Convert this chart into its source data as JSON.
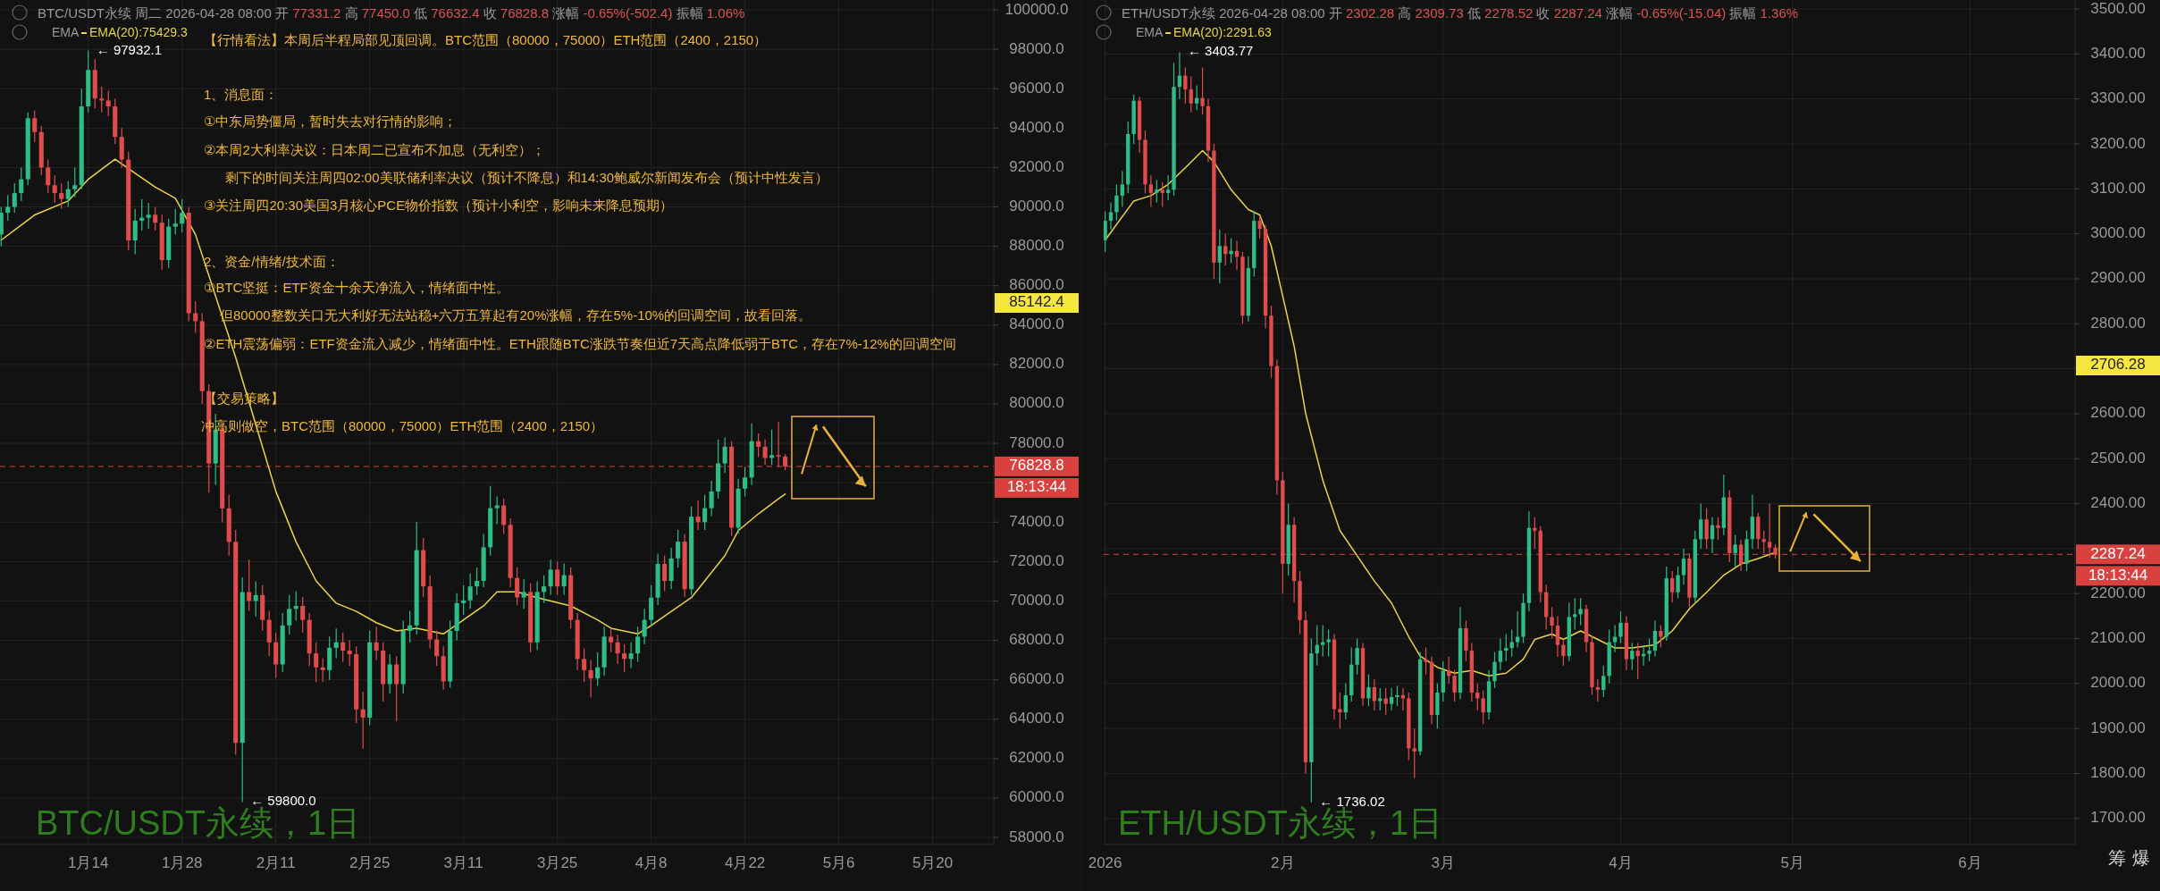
{
  "chart_data": [
    {
      "type": "candlestick",
      "title": "BTC/USDT永续 周二 2026-04-28 08:00 开 77331.2 高 77450.0 低 76632.4 收 76828.8 涨幅 -0.65%(-502.4) 振幅 1.06%",
      "x": [
        "2026-01-01",
        "2026-01-02",
        "2026-01-03",
        "2026-01-04",
        "2026-01-05",
        "2026-01-06",
        "2026-01-07",
        "2026-01-08",
        "2026-01-09",
        "2026-01-10",
        "2026-01-11",
        "2026-01-12",
        "2026-01-13",
        "2026-01-14",
        "2026-01-15",
        "2026-01-16",
        "2026-01-17",
        "2026-01-18",
        "2026-01-19",
        "2026-01-20",
        "2026-01-21",
        "2026-01-22",
        "2026-01-23",
        "2026-01-24",
        "2026-01-25",
        "2026-01-26",
        "2026-01-27",
        "2026-01-28",
        "2026-01-29",
        "2026-01-30",
        "2026-01-31",
        "2026-02-01",
        "2026-02-02",
        "2026-02-03",
        "2026-02-04",
        "2026-02-05",
        "2026-02-06",
        "2026-02-07",
        "2026-02-08",
        "2026-02-09",
        "2026-02-10",
        "2026-02-11",
        "2026-02-12",
        "2026-02-13",
        "2026-02-14",
        "2026-02-15",
        "2026-02-16",
        "2026-02-17",
        "2026-02-18",
        "2026-02-19",
        "2026-02-20",
        "2026-02-21",
        "2026-02-22",
        "2026-02-23",
        "2026-02-24",
        "2026-02-25",
        "2026-02-26",
        "2026-02-27",
        "2026-02-28",
        "2026-03-01",
        "2026-03-02",
        "2026-03-03",
        "2026-03-04",
        "2026-03-05",
        "2026-03-06",
        "2026-03-07",
        "2026-03-08",
        "2026-03-09",
        "2026-03-10",
        "2026-03-11",
        "2026-03-12",
        "2026-03-13",
        "2026-03-14",
        "2026-03-15",
        "2026-03-16",
        "2026-03-17",
        "2026-03-18",
        "2026-03-19",
        "2026-03-20",
        "2026-03-21",
        "2026-03-22",
        "2026-03-23",
        "2026-03-24",
        "2026-03-25",
        "2026-03-26",
        "2026-03-27",
        "2026-03-28",
        "2026-03-29",
        "2026-03-30",
        "2026-03-31",
        "2026-04-01",
        "2026-04-02",
        "2026-04-03",
        "2026-04-04",
        "2026-04-05",
        "2026-04-06",
        "2026-04-07",
        "2026-04-08",
        "2026-04-09",
        "2026-04-10",
        "2026-04-11",
        "2026-04-12",
        "2026-04-13",
        "2026-04-14",
        "2026-04-15",
        "2026-04-16",
        "2026-04-17",
        "2026-04-18",
        "2026-04-19",
        "2026-04-20",
        "2026-04-21",
        "2026-04-22",
        "2026-04-23",
        "2026-04-24",
        "2026-04-25",
        "2026-04-26",
        "2026-04-27",
        "2026-04-28"
      ],
      "ohlc": [
        [
          88600,
          90000,
          88000,
          89700
        ],
        [
          89700,
          90600,
          89300,
          90000
        ],
        [
          90000,
          91200,
          89700,
          90700
        ],
        [
          90700,
          92000,
          90300,
          91400
        ],
        [
          91400,
          94800,
          91100,
          94500
        ],
        [
          94500,
          94900,
          93300,
          93800
        ],
        [
          93800,
          94100,
          91600,
          92000
        ],
        [
          92000,
          92400,
          90700,
          91100
        ],
        [
          91100,
          91600,
          90200,
          90700
        ],
        [
          90700,
          91200,
          89900,
          90400
        ],
        [
          90400,
          91300,
          90000,
          90900
        ],
        [
          90900,
          92000,
          90500,
          91100
        ],
        [
          91100,
          96000,
          90900,
          95100
        ],
        [
          95100,
          97932.1,
          94800,
          96950
        ],
        [
          96950,
          97500,
          95000,
          95500
        ],
        [
          95500,
          96100,
          94800,
          95400
        ],
        [
          95400,
          95900,
          94600,
          95100
        ],
        [
          95100,
          95500,
          93200,
          93550
        ],
        [
          93550,
          94000,
          92000,
          92400
        ],
        [
          92400,
          92800,
          87800,
          88300
        ],
        [
          88300,
          89900,
          87600,
          89300
        ],
        [
          89300,
          90400,
          88800,
          89450
        ],
        [
          89450,
          90200,
          88900,
          89600
        ],
        [
          89600,
          90000,
          88800,
          89200
        ],
        [
          89200,
          89600,
          86800,
          87300
        ],
        [
          87300,
          89400,
          86900,
          89000
        ],
        [
          89000,
          89900,
          88600,
          89150
        ],
        [
          89150,
          90400,
          88700,
          89700
        ],
        [
          89700,
          90000,
          84200,
          84600
        ],
        [
          84600,
          85200,
          83600,
          84200
        ],
        [
          84200,
          84600,
          80000,
          80650
        ],
        [
          80650,
          81000,
          75500,
          76980
        ],
        [
          76980,
          79500,
          75900,
          78700
        ],
        [
          78700,
          79000,
          74000,
          74700
        ],
        [
          74700,
          75400,
          72300,
          73000
        ],
        [
          73000,
          73600,
          62200,
          62800
        ],
        [
          62800,
          71200,
          59800,
          70450
        ],
        [
          70450,
          72100,
          69500,
          70000
        ],
        [
          70000,
          71000,
          69200,
          70300
        ],
        [
          70300,
          70800,
          68500,
          69040
        ],
        [
          69040,
          69500,
          67200,
          67900
        ],
        [
          67900,
          68400,
          66100,
          66780
        ],
        [
          66780,
          69400,
          66400,
          68760
        ],
        [
          68760,
          70300,
          68300,
          69600
        ],
        [
          69600,
          70500,
          69000,
          69750
        ],
        [
          69750,
          70200,
          68400,
          69040
        ],
        [
          69040,
          69400,
          66700,
          67340
        ],
        [
          67340,
          67900,
          65900,
          66630
        ],
        [
          66630,
          67100,
          65900,
          66490
        ],
        [
          66490,
          68200,
          66000,
          67620
        ],
        [
          67620,
          68600,
          67100,
          67900
        ],
        [
          67900,
          68400,
          66900,
          67480
        ],
        [
          67480,
          68000,
          66700,
          67300
        ],
        [
          67300,
          67700,
          63800,
          64500
        ],
        [
          64500,
          65400,
          62500,
          64080
        ],
        [
          64080,
          68500,
          63700,
          67900
        ],
        [
          67900,
          68700,
          67000,
          67480
        ],
        [
          67480,
          67900,
          64900,
          65780
        ],
        [
          65780,
          67300,
          65300,
          66780
        ],
        [
          66780,
          67200,
          63900,
          65780
        ],
        [
          65780,
          69000,
          65300,
          68480
        ],
        [
          68480,
          69500,
          67900,
          68760
        ],
        [
          68760,
          74000,
          68300,
          72580
        ],
        [
          72580,
          73200,
          70200,
          70740
        ],
        [
          70740,
          71300,
          67600,
          68050
        ],
        [
          68050,
          68500,
          66700,
          67200
        ],
        [
          67200,
          67700,
          65500,
          65920
        ],
        [
          65920,
          69000,
          65600,
          68480
        ],
        [
          68480,
          70400,
          68000,
          69890
        ],
        [
          69890,
          70800,
          69300,
          70030
        ],
        [
          70030,
          71400,
          69600,
          70740
        ],
        [
          70740,
          71700,
          70300,
          71020
        ],
        [
          71020,
          73400,
          70700,
          72720
        ],
        [
          72720,
          75840,
          72300,
          74710
        ],
        [
          74710,
          75300,
          73900,
          74850
        ],
        [
          74850,
          75200,
          73400,
          73860
        ],
        [
          73860,
          74200,
          70700,
          71170
        ],
        [
          71170,
          71700,
          69800,
          70180
        ],
        [
          70180,
          71100,
          69600,
          70460
        ],
        [
          70460,
          70900,
          67400,
          67900
        ],
        [
          67900,
          71000,
          67500,
          70460
        ],
        [
          70460,
          71300,
          69900,
          70740
        ],
        [
          70740,
          72100,
          70300,
          71590
        ],
        [
          71590,
          72000,
          70300,
          70740
        ],
        [
          70740,
          71900,
          70300,
          71310
        ],
        [
          71310,
          71700,
          68600,
          69040
        ],
        [
          69040,
          69400,
          66500,
          67060
        ],
        [
          67060,
          67600,
          65900,
          66490
        ],
        [
          66490,
          67000,
          65100,
          66070
        ],
        [
          66070,
          67400,
          65700,
          66630
        ],
        [
          66630,
          68700,
          66200,
          68190
        ],
        [
          68190,
          68600,
          67400,
          67900
        ],
        [
          67900,
          68300,
          66800,
          67340
        ],
        [
          67340,
          67800,
          66400,
          67060
        ],
        [
          67060,
          67900,
          66600,
          67340
        ],
        [
          67340,
          68700,
          66900,
          68190
        ],
        [
          68190,
          69600,
          67800,
          69040
        ],
        [
          69040,
          70800,
          68700,
          70170
        ],
        [
          70170,
          72400,
          69800,
          71880
        ],
        [
          71880,
          72300,
          70500,
          71020
        ],
        [
          71020,
          72700,
          70600,
          72160
        ],
        [
          72160,
          73600,
          71700,
          73010
        ],
        [
          73010,
          73400,
          70200,
          70600
        ],
        [
          70600,
          74800,
          70300,
          74280
        ],
        [
          74280,
          75100,
          73600,
          74000
        ],
        [
          74000,
          75400,
          73600,
          74710
        ],
        [
          74710,
          76100,
          74300,
          75560
        ],
        [
          75560,
          78200,
          75200,
          76980
        ],
        [
          76980,
          78300,
          76500,
          77830
        ],
        [
          77830,
          78100,
          73300,
          73720
        ],
        [
          73720,
          76200,
          73400,
          75700
        ],
        [
          75700,
          76800,
          75300,
          76270
        ],
        [
          76270,
          79000,
          75900,
          78110
        ],
        [
          78110,
          78500,
          77300,
          77830
        ],
        [
          77830,
          78200,
          76900,
          77260
        ],
        [
          77260,
          78700,
          76900,
          77400
        ],
        [
          77400,
          79100,
          76800,
          77331.2
        ],
        [
          77331.2,
          77450.0,
          76632.4,
          76828.8
        ]
      ],
      "series": [
        {
          "name": "EMA(20):75429.3",
          "type": "line",
          "color": "#e8d44d",
          "x": [
            "2026-01-01",
            "2026-01-06",
            "2026-01-11",
            "2026-01-14",
            "2026-01-18",
            "2026-01-21",
            "2026-01-24",
            "2026-01-27",
            "2026-01-30",
            "2026-02-02",
            "2026-02-05",
            "2026-02-08",
            "2026-02-11",
            "2026-02-14",
            "2026-02-17",
            "2026-02-20",
            "2026-02-23",
            "2026-02-26",
            "2026-03-01",
            "2026-03-04",
            "2026-03-08",
            "2026-03-11",
            "2026-03-14",
            "2026-03-16",
            "2026-03-19",
            "2026-03-22",
            "2026-03-27",
            "2026-03-31",
            "2026-04-02",
            "2026-04-06",
            "2026-04-08",
            "2026-04-11",
            "2026-04-14",
            "2026-04-16",
            "2026-04-19",
            "2026-04-21",
            "2026-04-24",
            "2026-04-27",
            "2026-04-28"
          ],
          "values": [
            88310,
            89590,
            90300,
            91400,
            92420,
            91710,
            91000,
            90440,
            88600,
            85480,
            82360,
            78960,
            75560,
            73010,
            71020,
            69890,
            69470,
            68900,
            68480,
            68620,
            68330,
            69040,
            69750,
            70460,
            70460,
            70170,
            69750,
            69040,
            68620,
            68330,
            68760,
            69470,
            70170,
            71020,
            72300,
            73570,
            74420,
            75190,
            75429.3
          ]
        }
      ],
      "xlim": [
        "2025-12-31T20:00",
        "2026-05-29T03:00"
      ],
      "xticks": [
        {
          "value": "2026-01-14",
          "label": "1月14"
        },
        {
          "value": "2026-01-28",
          "label": "1月28"
        },
        {
          "value": "2026-02-11",
          "label": "2月11"
        },
        {
          "value": "2026-02-25",
          "label": "2月25"
        },
        {
          "value": "2026-03-11",
          "label": "3月11"
        },
        {
          "value": "2026-03-25",
          "label": "3月25"
        },
        {
          "value": "2026-04-08",
          "label": "4月8"
        },
        {
          "value": "2026-04-22",
          "label": "4月22"
        },
        {
          "value": "2026-05-06",
          "label": "5月6"
        },
        {
          "value": "2026-05-20",
          "label": "5月20"
        }
      ],
      "ylim": [
        57640,
        100500
      ],
      "yticks": [
        {
          "value": 58000,
          "label": "58000.0"
        },
        {
          "value": 60000,
          "label": "60000.0"
        },
        {
          "value": 62000,
          "label": "62000.0"
        },
        {
          "value": 64000,
          "label": "64000.0"
        },
        {
          "value": 66000,
          "label": "66000.0"
        },
        {
          "value": 68000,
          "label": "68000.0"
        },
        {
          "value": 70000,
          "label": "70000.0"
        },
        {
          "value": 72000,
          "label": "72000.0"
        },
        {
          "value": 74000,
          "label": "74000.0"
        },
        {
          "value": 76000,
          "label": null
        },
        {
          "value": 78000,
          "label": "78000.0"
        },
        {
          "value": 80000,
          "label": "80000.0"
        },
        {
          "value": 82000,
          "label": "82000.0"
        },
        {
          "value": 84000,
          "label": "84000.0"
        },
        {
          "value": 86000,
          "label": "86000.0"
        },
        {
          "value": 88000,
          "label": "88000.0"
        },
        {
          "value": 90000,
          "label": "90000.0"
        },
        {
          "value": 92000,
          "label": "92000.0"
        },
        {
          "value": 94000,
          "label": "94000.0"
        },
        {
          "value": 96000,
          "label": "96000.0"
        },
        {
          "value": 98000,
          "label": "98000.0"
        },
        {
          "value": 100000,
          "label": "100000.0"
        }
      ],
      "grid": true,
      "legend": "top left",
      "ref_lines": [
        {
          "axis": "y",
          "value": 76828.8,
          "label": "76828.8",
          "color": "#d9413f",
          "line_style": "dashed"
        }
      ],
      "annotations": [
        "EMA",
        "【行情看法】本周后半程局部见顶回调。BTC范围（80000，75000）ETH范围（2400，2150）",
        "1、消息面：",
        "①中东局势僵局，暂时失去对行情的影响；",
        "②本周2大利率决议：日本周二已宣布不加息（无利空）；",
        "剩下的时间关注周四02:00美联储利率决议（预计不降息）和14:30鲍威尔新闻发布会（预计中性发言）",
        "③关注周四20:30美国3月核心PCE物价指数（预计小利空，影响未来降息预期）",
        "2、资金/情绪/技术面：",
        "①BTC坚挺：ETF资金十余天净流入，情绪面中性。",
        "但80000整数关口无大利好无法站稳+六万五算起有20%涨幅，存在5%-10%的回调空间，故看回落。",
        "②ETH震荡偏弱：ETF资金流入减少，情绪面中性。ETH跟随BTC涨跌节奏但近7天高点降低弱于BTC，存在7%-12%的回调空间",
        "【交易策略】",
        "冲高则做空，BTC范围（80000，75000）ETH范围（2400，2150）",
        "BTC/USDT永续，1日",
        "18:13:44",
        "85142.4",
        {
          "text": "← 97932.1",
          "x": "2026-01-14",
          "y": 97932.1
        },
        {
          "text": "← 59800.0",
          "x": "2026-02-06",
          "y": 59800.0
        }
      ]
    },
    {
      "type": "candlestick",
      "title": "ETH/USDT永续 2026-04-28 08:00 开 2302.28 高 2309.73 低 2278.52 收 2287.24 涨幅 -0.65%(-15.04) 振幅 1.36%",
      "x": [
        "2026-01-01",
        "2026-01-02",
        "2026-01-03",
        "2026-01-04",
        "2026-01-05",
        "2026-01-06",
        "2026-01-07",
        "2026-01-08",
        "2026-01-09",
        "2026-01-10",
        "2026-01-11",
        "2026-01-12",
        "2026-01-13",
        "2026-01-14",
        "2026-01-15",
        "2026-01-16",
        "2026-01-17",
        "2026-01-18",
        "2026-01-19",
        "2026-01-20",
        "2026-01-21",
        "2026-01-22",
        "2026-01-23",
        "2026-01-24",
        "2026-01-25",
        "2026-01-26",
        "2026-01-27",
        "2026-01-28",
        "2026-01-29",
        "2026-01-30",
        "2026-01-31",
        "2026-02-01",
        "2026-02-02",
        "2026-02-03",
        "2026-02-04",
        "2026-02-05",
        "2026-02-06",
        "2026-02-07",
        "2026-02-08",
        "2026-02-09",
        "2026-02-10",
        "2026-02-11",
        "2026-02-12",
        "2026-02-13",
        "2026-02-14",
        "2026-02-15",
        "2026-02-16",
        "2026-02-17",
        "2026-02-18",
        "2026-02-19",
        "2026-02-20",
        "2026-02-21",
        "2026-02-22",
        "2026-02-23",
        "2026-02-24",
        "2026-02-25",
        "2026-02-26",
        "2026-02-27",
        "2026-02-28",
        "2026-03-01",
        "2026-03-02",
        "2026-03-03",
        "2026-03-04",
        "2026-03-05",
        "2026-03-06",
        "2026-03-07",
        "2026-03-08",
        "2026-03-09",
        "2026-03-10",
        "2026-03-11",
        "2026-03-12",
        "2026-03-13",
        "2026-03-14",
        "2026-03-15",
        "2026-03-16",
        "2026-03-17",
        "2026-03-18",
        "2026-03-19",
        "2026-03-20",
        "2026-03-21",
        "2026-03-22",
        "2026-03-23",
        "2026-03-24",
        "2026-03-25",
        "2026-03-26",
        "2026-03-27",
        "2026-03-28",
        "2026-03-29",
        "2026-03-30",
        "2026-03-31",
        "2026-04-01",
        "2026-04-02",
        "2026-04-03",
        "2026-04-04",
        "2026-04-05",
        "2026-04-06",
        "2026-04-07",
        "2026-04-08",
        "2026-04-09",
        "2026-04-10",
        "2026-04-11",
        "2026-04-12",
        "2026-04-13",
        "2026-04-14",
        "2026-04-15",
        "2026-04-16",
        "2026-04-17",
        "2026-04-18",
        "2026-04-19",
        "2026-04-20",
        "2026-04-21",
        "2026-04-22",
        "2026-04-23",
        "2026-04-24",
        "2026-04-25",
        "2026-04-26",
        "2026-04-27",
        "2026-04-28"
      ],
      "ohlc": [
        [
          2986,
          3050,
          2960,
          3029
        ],
        [
          3029,
          3070,
          3010,
          3048
        ],
        [
          3048,
          3110,
          3030,
          3085
        ],
        [
          3085,
          3140,
          3060,
          3110
        ],
        [
          3110,
          3250,
          3090,
          3222
        ],
        [
          3222,
          3310,
          3200,
          3296
        ],
        [
          3296,
          3305,
          3180,
          3209
        ],
        [
          3209,
          3230,
          3090,
          3110
        ],
        [
          3110,
          3130,
          3060,
          3091
        ],
        [
          3091,
          3120,
          3070,
          3098
        ],
        [
          3098,
          3115,
          3060,
          3091
        ],
        [
          3091,
          3130,
          3075,
          3098
        ],
        [
          3098,
          3380,
          3085,
          3327
        ],
        [
          3327,
          3403.77,
          3300,
          3352
        ],
        [
          3352,
          3370,
          3290,
          3321
        ],
        [
          3321,
          3350,
          3270,
          3290
        ],
        [
          3290,
          3330,
          3275,
          3302
        ],
        [
          3302,
          3370,
          3265,
          3284
        ],
        [
          3284,
          3300,
          3160,
          3185
        ],
        [
          3185,
          3200,
          2900,
          2936
        ],
        [
          2936,
          3010,
          2890,
          2973
        ],
        [
          2973,
          3000,
          2930,
          2955
        ],
        [
          2955,
          2990,
          2935,
          2962
        ],
        [
          2962,
          2985,
          2920,
          2949
        ],
        [
          2949,
          2960,
          2800,
          2818
        ],
        [
          2818,
          2950,
          2805,
          2924
        ],
        [
          2924,
          3050,
          2905,
          3029
        ],
        [
          3029,
          3040,
          2990,
          3011
        ],
        [
          3011,
          3020,
          2790,
          2818
        ],
        [
          2818,
          2840,
          2680,
          2706
        ],
        [
          2706,
          2720,
          2420,
          2452
        ],
        [
          2452,
          2470,
          2200,
          2266
        ],
        [
          2266,
          2400,
          2240,
          2353
        ],
        [
          2353,
          2370,
          2180,
          2228
        ],
        [
          2228,
          2250,
          2110,
          2141
        ],
        [
          2141,
          2160,
          1800,
          1825
        ],
        [
          1825,
          2100,
          1736.02,
          2067
        ],
        [
          2067,
          2130,
          2040,
          2086
        ],
        [
          2086,
          2130,
          2060,
          2092
        ],
        [
          2092,
          2120,
          2060,
          2098
        ],
        [
          2098,
          2110,
          1920,
          1943
        ],
        [
          1943,
          1980,
          1900,
          1936
        ],
        [
          1936,
          2000,
          1920,
          1974
        ],
        [
          1974,
          2080,
          1960,
          2042
        ],
        [
          2042,
          2100,
          2020,
          2079
        ],
        [
          2079,
          2090,
          1950,
          1967
        ],
        [
          1967,
          2020,
          1950,
          1992
        ],
        [
          1992,
          2010,
          1940,
          1961
        ],
        [
          1961,
          1990,
          1940,
          1967
        ],
        [
          1967,
          1990,
          1930,
          1955
        ],
        [
          1955,
          1990,
          1940,
          1970
        ],
        [
          1970,
          1995,
          1950,
          1974
        ],
        [
          1974,
          1990,
          1940,
          1967
        ],
        [
          1967,
          1980,
          1830,
          1856
        ],
        [
          1856,
          1900,
          1790,
          1849
        ],
        [
          1849,
          2070,
          1840,
          2054
        ],
        [
          2054,
          2080,
          2020,
          2048
        ],
        [
          2048,
          2060,
          1910,
          1930
        ],
        [
          1930,
          2000,
          1900,
          1980
        ],
        [
          1980,
          2050,
          1960,
          2029
        ],
        [
          2029,
          2060,
          2000,
          2017
        ],
        [
          2017,
          2030,
          1960,
          1980
        ],
        [
          1980,
          2170,
          1965,
          2123
        ],
        [
          2123,
          2140,
          2050,
          2073
        ],
        [
          2073,
          2090,
          1960,
          1980
        ],
        [
          1980,
          2000,
          1940,
          1967
        ],
        [
          1967,
          1985,
          1910,
          1936
        ],
        [
          1936,
          2030,
          1920,
          2005
        ],
        [
          2005,
          2070,
          1990,
          2048
        ],
        [
          2048,
          2100,
          2030,
          2073
        ],
        [
          2073,
          2110,
          2050,
          2079
        ],
        [
          2079,
          2120,
          2060,
          2092
        ],
        [
          2092,
          2160,
          2080,
          2104
        ],
        [
          2104,
          2200,
          2090,
          2179
        ],
        [
          2179,
          2383,
          2160,
          2346
        ],
        [
          2346,
          2370,
          2300,
          2340
        ],
        [
          2340,
          2350,
          2180,
          2203
        ],
        [
          2203,
          2220,
          2120,
          2148
        ],
        [
          2148,
          2170,
          2100,
          2129
        ],
        [
          2129,
          2150,
          2060,
          2086
        ],
        [
          2086,
          2100,
          2040,
          2061
        ],
        [
          2061,
          2180,
          2050,
          2148
        ],
        [
          2148,
          2190,
          2120,
          2154
        ],
        [
          2154,
          2190,
          2130,
          2166
        ],
        [
          2166,
          2175,
          2070,
          2092
        ],
        [
          2092,
          2105,
          1975,
          1992
        ],
        [
          1992,
          2010,
          1960,
          1986
        ],
        [
          1986,
          2040,
          1970,
          2017
        ],
        [
          2017,
          2120,
          2000,
          2092
        ],
        [
          2092,
          2130,
          2070,
          2104
        ],
        [
          2104,
          2160,
          2090,
          2135
        ],
        [
          2135,
          2150,
          2030,
          2054
        ],
        [
          2054,
          2090,
          2030,
          2073
        ],
        [
          2073,
          2090,
          2010,
          2061
        ],
        [
          2061,
          2085,
          2040,
          2066
        ],
        [
          2066,
          2100,
          2050,
          2073
        ],
        [
          2073,
          2140,
          2060,
          2117
        ],
        [
          2117,
          2130,
          2080,
          2104
        ],
        [
          2104,
          2260,
          2095,
          2234
        ],
        [
          2234,
          2250,
          2180,
          2203
        ],
        [
          2203,
          2260,
          2190,
          2241
        ],
        [
          2241,
          2300,
          2220,
          2278
        ],
        [
          2278,
          2290,
          2170,
          2191
        ],
        [
          2191,
          2340,
          2180,
          2321
        ],
        [
          2321,
          2400,
          2300,
          2365
        ],
        [
          2365,
          2390,
          2300,
          2321
        ],
        [
          2321,
          2370,
          2290,
          2352
        ],
        [
          2352,
          2370,
          2320,
          2346
        ],
        [
          2346,
          2464,
          2330,
          2414
        ],
        [
          2414,
          2430,
          2270,
          2290
        ],
        [
          2290,
          2330,
          2260,
          2309
        ],
        [
          2309,
          2320,
          2250,
          2266
        ],
        [
          2266,
          2340,
          2250,
          2321
        ],
        [
          2321,
          2420,
          2300,
          2371
        ],
        [
          2371,
          2380,
          2300,
          2321
        ],
        [
          2321,
          2340,
          2290,
          2315
        ],
        [
          2315,
          2400,
          2280,
          2302.28
        ],
        [
          2302.28,
          2309.73,
          2278.52,
          2287.24
        ]
      ],
      "series": [
        {
          "name": "EMA(20):2291.63",
          "type": "line",
          "color": "#e8d44d",
          "x": [
            "2026-01-01",
            "2026-01-06",
            "2026-01-09",
            "2026-01-12",
            "2026-01-15",
            "2026-01-18",
            "2026-01-20",
            "2026-01-23",
            "2026-01-26",
            "2026-01-28",
            "2026-01-30",
            "2026-02-01",
            "2026-02-03",
            "2026-02-05",
            "2026-02-08",
            "2026-02-11",
            "2026-02-14",
            "2026-02-17",
            "2026-02-20",
            "2026-02-23",
            "2026-02-25",
            "2026-02-28",
            "2026-03-03",
            "2026-03-06",
            "2026-03-09",
            "2026-03-12",
            "2026-03-15",
            "2026-03-17",
            "2026-03-20",
            "2026-03-22",
            "2026-03-25",
            "2026-03-28",
            "2026-03-31",
            "2026-04-03",
            "2026-04-07",
            "2026-04-10",
            "2026-04-13",
            "2026-04-16",
            "2026-04-19",
            "2026-04-22",
            "2026-04-25",
            "2026-04-28"
          ],
          "values": [
            2986,
            3073,
            3085,
            3110,
            3147,
            3185,
            3160,
            3098,
            3054,
            3042,
            2973,
            2862,
            2750,
            2601,
            2452,
            2340,
            2284,
            2228,
            2179,
            2104,
            2061,
            2036,
            2023,
            2029,
            2017,
            2023,
            2054,
            2098,
            2110,
            2098,
            2117,
            2098,
            2079,
            2079,
            2086,
            2117,
            2166,
            2203,
            2241,
            2266,
            2278,
            2291.63
          ]
        }
      ],
      "xlim": [
        "2025-12-31T18:00",
        "2026-06-19T08:00"
      ],
      "xticks": [
        {
          "value": "2026-01-01",
          "label": "2026"
        },
        {
          "value": "2026-02-01",
          "label": "2月"
        },
        {
          "value": "2026-03-01",
          "label": "3月"
        },
        {
          "value": "2026-04-01",
          "label": "4月"
        },
        {
          "value": "2026-05-01",
          "label": "5月"
        },
        {
          "value": "2026-06-01",
          "label": "6月"
        }
      ],
      "ylim": [
        1642,
        3520
      ],
      "yticks": [
        {
          "value": 1700,
          "label": "1700.00"
        },
        {
          "value": 1800,
          "label": "1800.00"
        },
        {
          "value": 1900,
          "label": "1900.00"
        },
        {
          "value": 2000,
          "label": "2000.00"
        },
        {
          "value": 2100,
          "label": "2100.00"
        },
        {
          "value": 2200,
          "label": "2200.00"
        },
        {
          "value": 2300,
          "label": null
        },
        {
          "value": 2400,
          "label": "2400.00"
        },
        {
          "value": 2500,
          "label": "2500.00"
        },
        {
          "value": 2600,
          "label": "2600.00"
        },
        {
          "value": 2700,
          "label": null
        },
        {
          "value": 2800,
          "label": "2800.00"
        },
        {
          "value": 2900,
          "label": "2900.00"
        },
        {
          "value": 3000,
          "label": "3000.00"
        },
        {
          "value": 3100,
          "label": "3100.00"
        },
        {
          "value": 3200,
          "label": "3200.00"
        },
        {
          "value": 3300,
          "label": "3300.00"
        },
        {
          "value": 3400,
          "label": "3400.00"
        },
        {
          "value": 3500,
          "label": "3500.00"
        }
      ],
      "grid": true,
      "legend": "top left",
      "ref_lines": [
        {
          "axis": "y",
          "value": 2287.24,
          "label": "2287.24",
          "color": "#d9413f",
          "line_style": "dashed"
        }
      ],
      "annotations": [
        "EMA",
        "ETH/USDT永续，1日",
        "18:13:44",
        "筹",
        "爆",
        "2706.28",
        {
          "text": "← 3403.77",
          "x": "2026-01-14",
          "y": 3403.77
        },
        {
          "text": "← 1736.02",
          "x": "2026-02-06",
          "y": 1736.02
        }
      ]
    }
  ]
}
